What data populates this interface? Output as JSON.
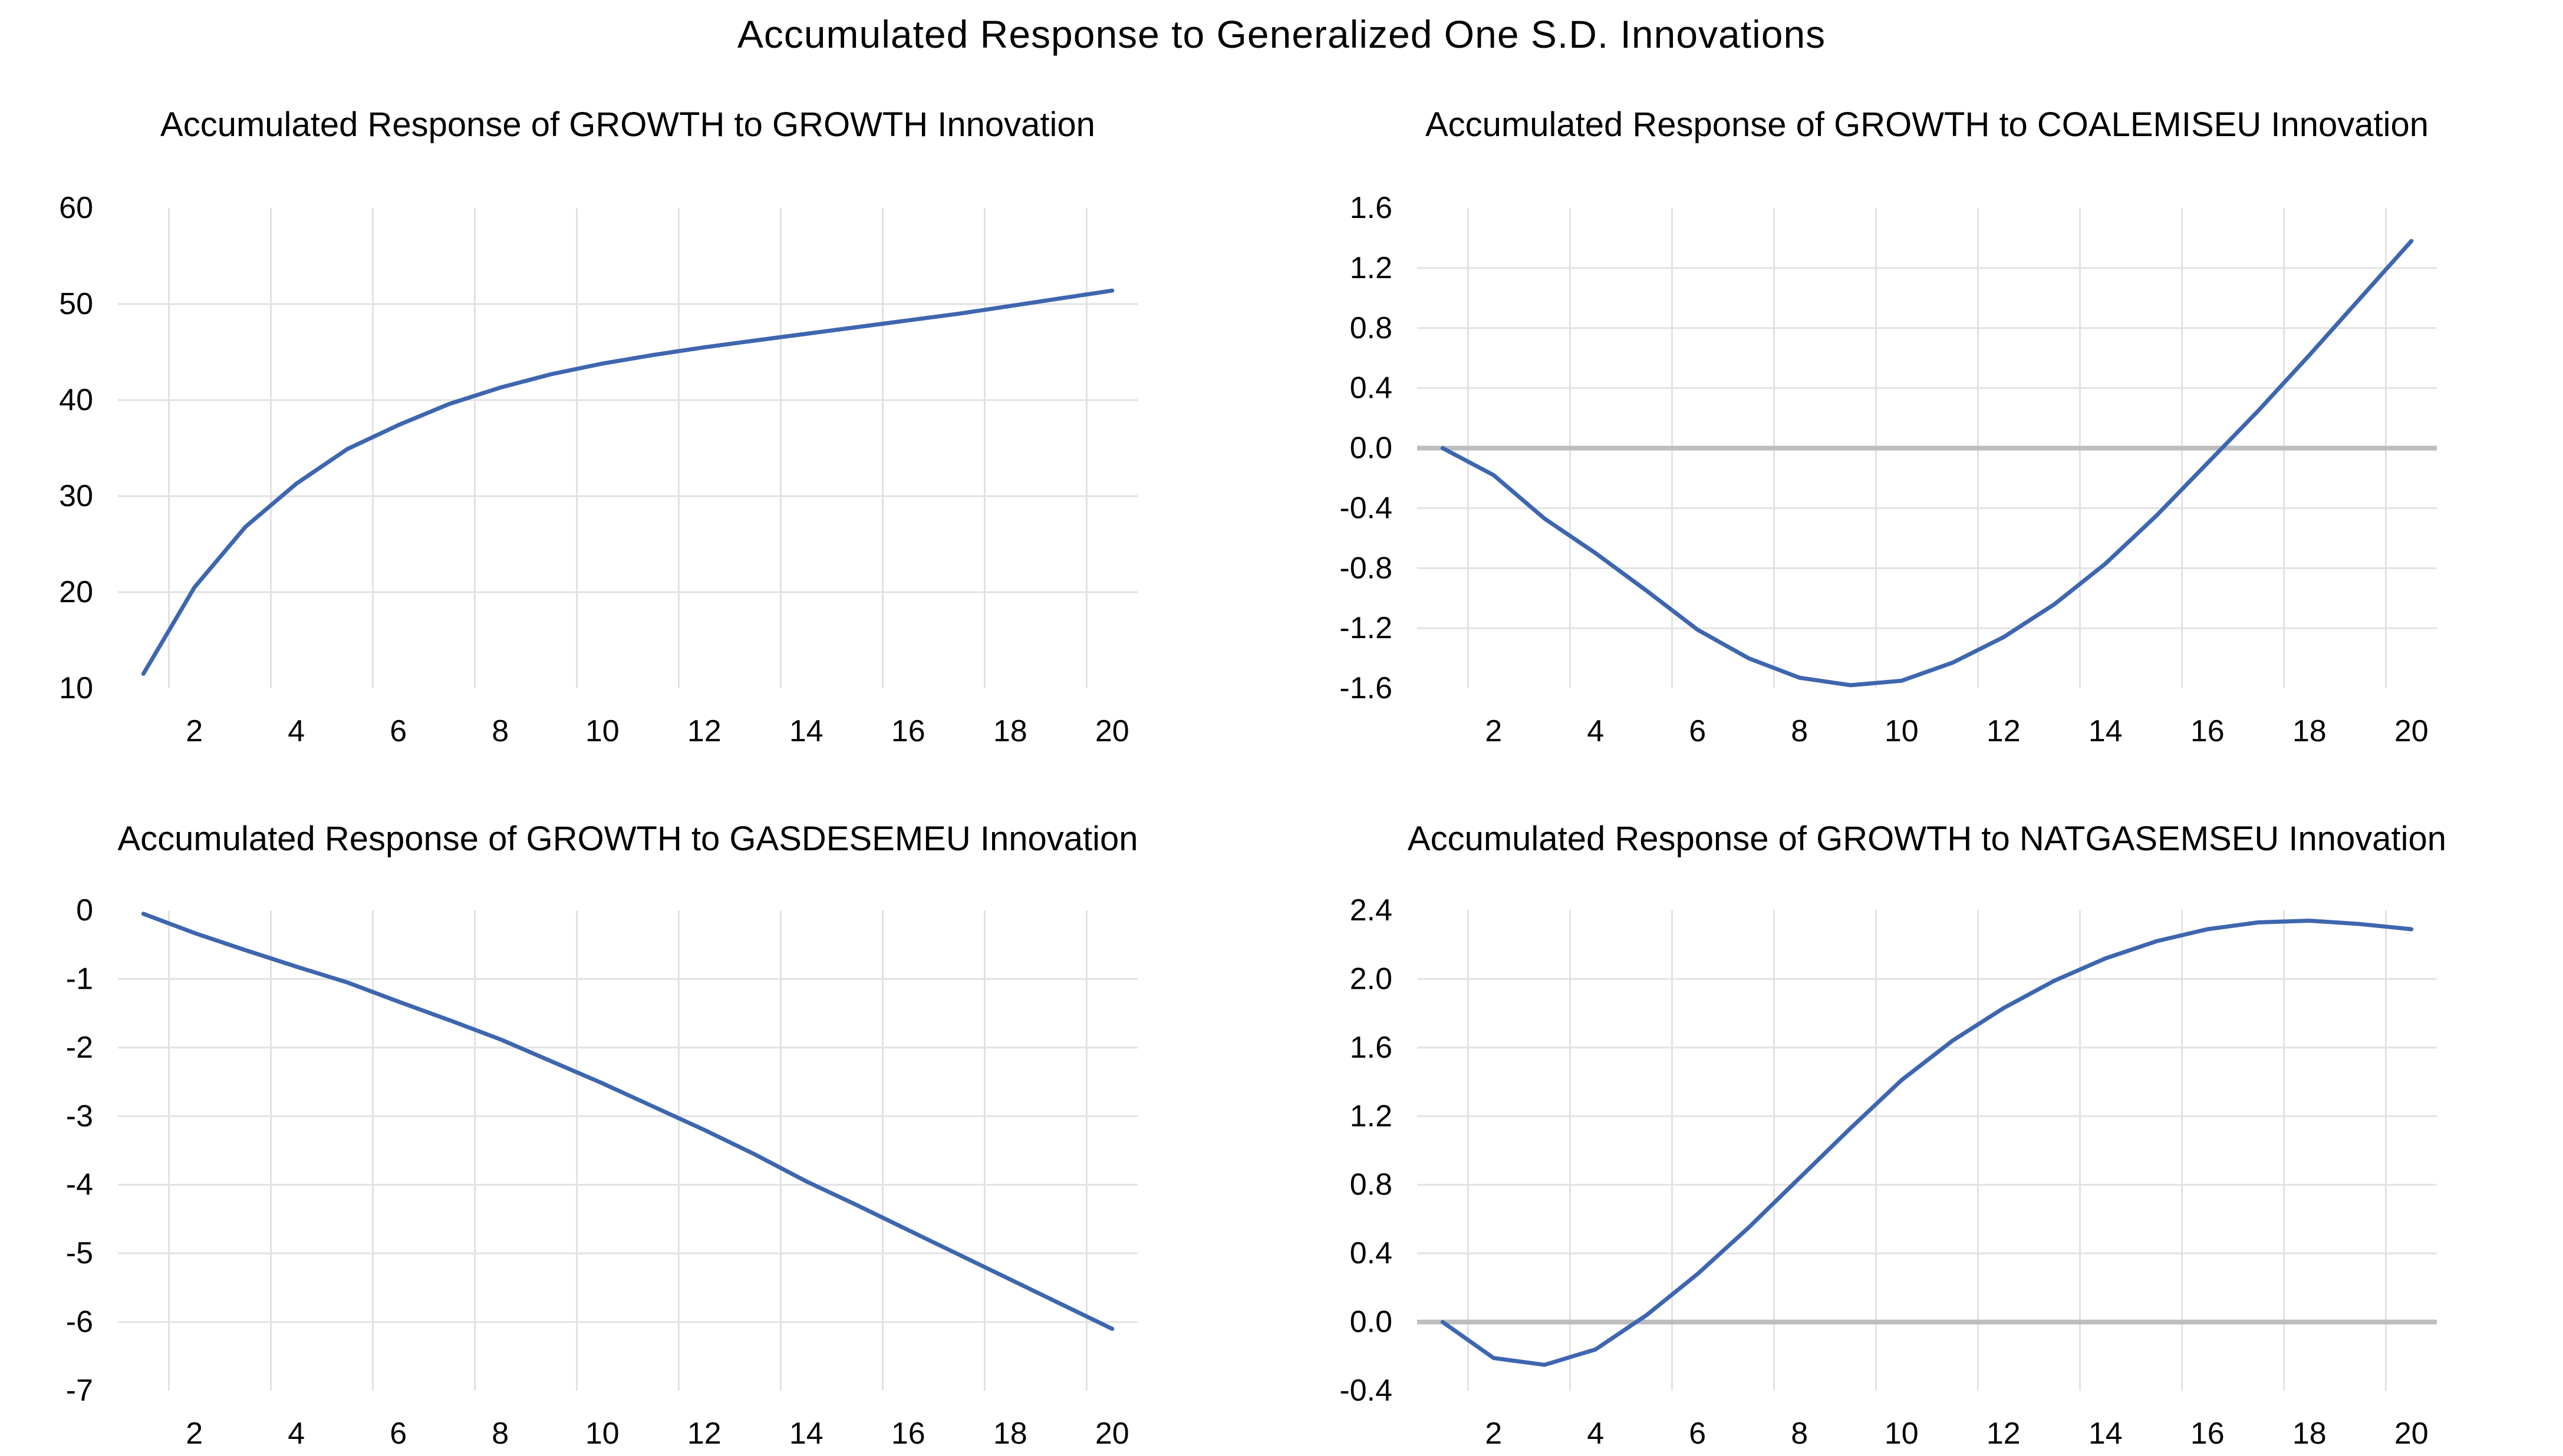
{
  "page": {
    "title": "Accumulated Response to Generalized One S.D. Innovations"
  },
  "colors": {
    "background": "#FFFFFF",
    "line": "#3E66AF",
    "gridline": "#E2E2E2",
    "zero_line": "#BDBDBD",
    "text": "#000000"
  },
  "chart_data": [
    {
      "type": "line",
      "title": "Accumulated Response of GROWTH to GROWTH Innovation",
      "x": [
        1,
        2,
        3,
        4,
        5,
        6,
        7,
        8,
        9,
        10,
        11,
        12,
        13,
        14,
        15,
        16,
        17,
        18,
        19,
        20
      ],
      "values": [
        11.5,
        20.5,
        26.8,
        31.3,
        34.9,
        37.4,
        39.6,
        41.3,
        42.7,
        43.8,
        44.7,
        45.5,
        46.2,
        46.9,
        47.6,
        48.3,
        49.0,
        49.8,
        50.6,
        51.4
      ],
      "ylim": [
        10,
        60
      ],
      "ytick_step": 10,
      "ytick_labels": [
        "60",
        "50",
        "40",
        "30",
        "20",
        "10"
      ],
      "xtick_labels": [
        "2",
        "4",
        "6",
        "8",
        "10",
        "12",
        "14",
        "16",
        "18",
        "20"
      ],
      "y_decimals": 0,
      "zero_axis_line": false,
      "grid": true,
      "legend": "none"
    },
    {
      "type": "line",
      "title": "Accumulated Response of GROWTH to COALEMISEU Innovation",
      "x": [
        1,
        2,
        3,
        4,
        5,
        6,
        7,
        8,
        9,
        10,
        11,
        12,
        13,
        14,
        15,
        16,
        17,
        18,
        19,
        20
      ],
      "values": [
        0.0,
        -0.18,
        -0.47,
        -0.7,
        -0.95,
        -1.21,
        -1.4,
        -1.53,
        -1.58,
        -1.55,
        -1.43,
        -1.26,
        -1.04,
        -0.77,
        -0.45,
        -0.1,
        0.25,
        0.62,
        1.0,
        1.38
      ],
      "ylim": [
        -1.6,
        1.6
      ],
      "ytick_step": 0.4,
      "ytick_labels": [
        "1.6",
        "1.2",
        "0.8",
        "0.4",
        "0.0",
        "-0.4",
        "-0.8",
        "-1.2",
        "-1.6"
      ],
      "xtick_labels": [
        "2",
        "4",
        "6",
        "8",
        "10",
        "12",
        "14",
        "16",
        "18",
        "20"
      ],
      "y_decimals": 1,
      "zero_axis_line": true,
      "grid": true,
      "legend": "none"
    },
    {
      "type": "line",
      "title": "Accumulated Response of GROWTH to GASDESEMEU Innovation",
      "x": [
        1,
        2,
        3,
        4,
        5,
        6,
        7,
        8,
        9,
        10,
        11,
        12,
        13,
        14,
        15,
        16,
        17,
        18,
        19,
        20
      ],
      "values": [
        -0.05,
        -0.33,
        -0.58,
        -0.82,
        -1.05,
        -1.33,
        -1.6,
        -1.88,
        -2.2,
        -2.52,
        -2.86,
        -3.2,
        -3.56,
        -3.95,
        -4.3,
        -4.66,
        -5.02,
        -5.38,
        -5.74,
        -6.1
      ],
      "ylim": [
        -7,
        0
      ],
      "ytick_step": 1,
      "ytick_labels": [
        "0",
        "-1",
        "-2",
        "-3",
        "-4",
        "-5",
        "-6",
        "-7"
      ],
      "xtick_labels": [
        "2",
        "4",
        "6",
        "8",
        "10",
        "12",
        "14",
        "16",
        "18",
        "20"
      ],
      "y_decimals": 0,
      "zero_axis_line": false,
      "grid": true,
      "legend": "none"
    },
    {
      "type": "line",
      "title": "Accumulated Response of GROWTH to NATGASEMSEU Innovation",
      "x": [
        1,
        2,
        3,
        4,
        5,
        6,
        7,
        8,
        9,
        10,
        11,
        12,
        13,
        14,
        15,
        16,
        17,
        18,
        19,
        20
      ],
      "values": [
        0.0,
        -0.21,
        -0.25,
        -0.16,
        0.04,
        0.28,
        0.55,
        0.84,
        1.13,
        1.41,
        1.64,
        1.83,
        1.99,
        2.12,
        2.22,
        2.29,
        2.33,
        2.34,
        2.32,
        2.29
      ],
      "ylim": [
        -0.4,
        2.4
      ],
      "ytick_step": 0.4,
      "ytick_labels": [
        "2.4",
        "2.0",
        "1.6",
        "1.2",
        "0.8",
        "0.4",
        "0.0",
        "-0.4"
      ],
      "xtick_labels": [
        "2",
        "4",
        "6",
        "8",
        "10",
        "12",
        "14",
        "16",
        "18",
        "20"
      ],
      "y_decimals": 1,
      "zero_axis_line": true,
      "grid": true,
      "legend": "none"
    }
  ]
}
